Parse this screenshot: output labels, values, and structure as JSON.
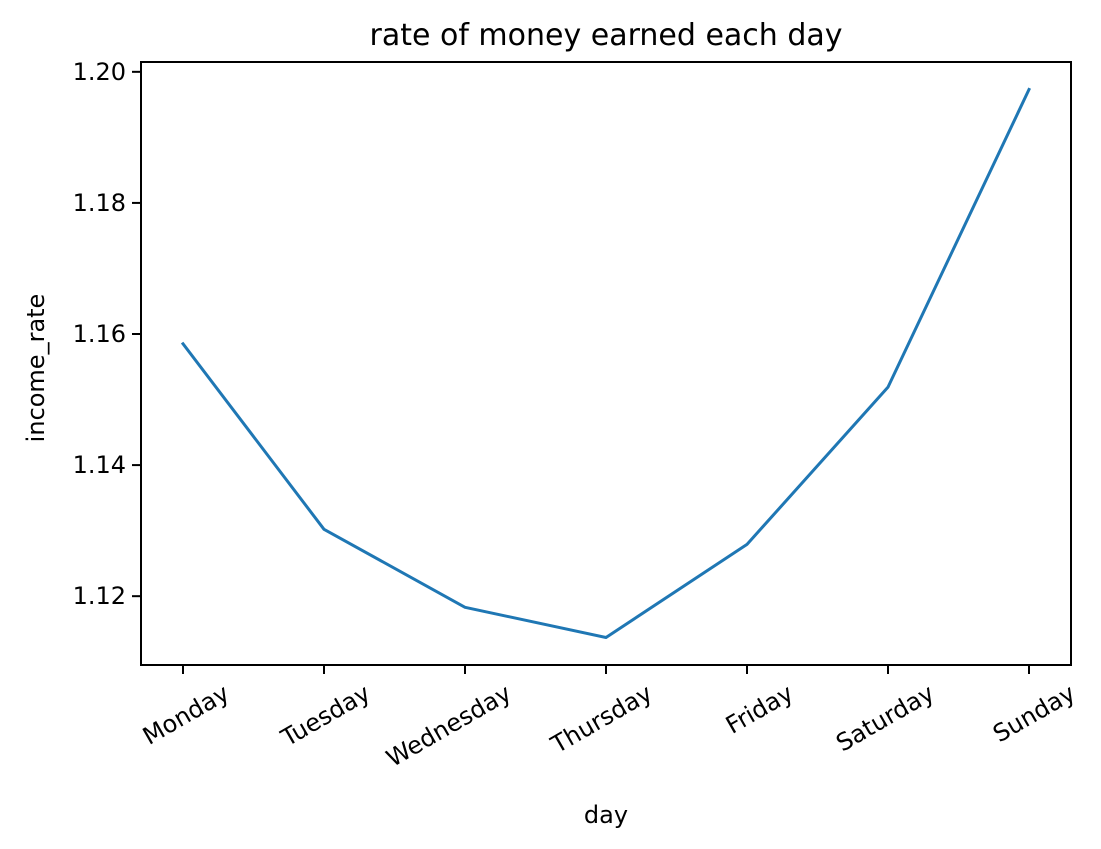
{
  "chart_data": {
    "type": "line",
    "title": "rate of money earned each day",
    "xlabel": "day",
    "ylabel": "income_rate",
    "categories": [
      "Monday",
      "Tuesday",
      "Wednesday",
      "Thursday",
      "Friday",
      "Saturday",
      "Sunday"
    ],
    "series": [
      {
        "values": [
          1.1585,
          1.1302,
          1.1183,
          1.1137,
          1.1279,
          1.1519,
          1.1973
        ],
        "color": "#1f77b4"
      }
    ],
    "ylim": [
      1.1095,
      1.2015
    ],
    "yticks": [
      1.12,
      1.14,
      1.16,
      1.18,
      1.2
    ],
    "ytick_labels": [
      "1.12",
      "1.14",
      "1.16",
      "1.18",
      "1.20"
    ],
    "grid": false,
    "legend": "none"
  }
}
